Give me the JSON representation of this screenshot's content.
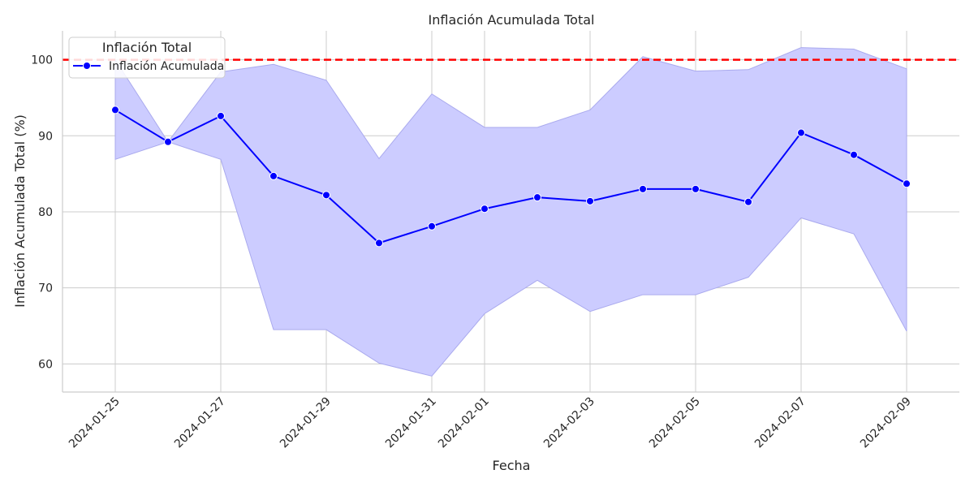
{
  "chart_data": {
    "type": "line",
    "title": "Inflación Acumulada Total",
    "xlabel": "Fecha",
    "ylabel": "Inflación Acumulada Total (%)",
    "xlim": [
      "2024-01-24",
      "2024-02-10"
    ],
    "ylim": [
      56.3,
      103.8
    ],
    "yticks": [
      60,
      70,
      80,
      90,
      100
    ],
    "xticks": [
      "2024-01-25",
      "2024-01-27",
      "2024-01-29",
      "2024-01-31",
      "2024-02-01",
      "2024-02-03",
      "2024-02-05",
      "2024-02-07",
      "2024-02-09"
    ],
    "grid": true,
    "legend": {
      "title": "Inflación Total",
      "position": "top-left",
      "entries": [
        "Inflación Acumulada"
      ]
    },
    "series": [
      {
        "name": "Inflación Acumulada",
        "color": "#0000ff",
        "x": [
          "2024-01-25",
          "2024-01-26",
          "2024-01-27",
          "2024-01-28",
          "2024-01-29",
          "2024-01-30",
          "2024-01-31",
          "2024-02-01",
          "2024-02-02",
          "2024-02-03",
          "2024-02-04",
          "2024-02-05",
          "2024-02-06",
          "2024-02-07",
          "2024-02-08",
          "2024-02-09"
        ],
        "values": [
          93.4,
          89.2,
          92.6,
          84.7,
          82.2,
          75.9,
          78.1,
          80.4,
          81.9,
          81.4,
          83.0,
          83.0,
          81.3,
          90.4,
          87.5,
          83.7
        ],
        "ci_lower": [
          86.9,
          89.2,
          86.9,
          64.5,
          64.5,
          60.1,
          58.4,
          66.6,
          71.0,
          66.9,
          69.1,
          69.1,
          71.4,
          79.2,
          77.1,
          64.3
        ],
        "ci_upper": [
          100.0,
          89.2,
          98.4,
          99.4,
          97.3,
          87.0,
          95.5,
          91.1,
          91.1,
          93.4,
          100.4,
          98.5,
          98.7,
          101.6,
          101.4,
          98.8
        ],
        "band_color": "#ccccff"
      }
    ],
    "reference_line": {
      "y": 100,
      "color": "#ff0000",
      "style": "dashed"
    }
  }
}
